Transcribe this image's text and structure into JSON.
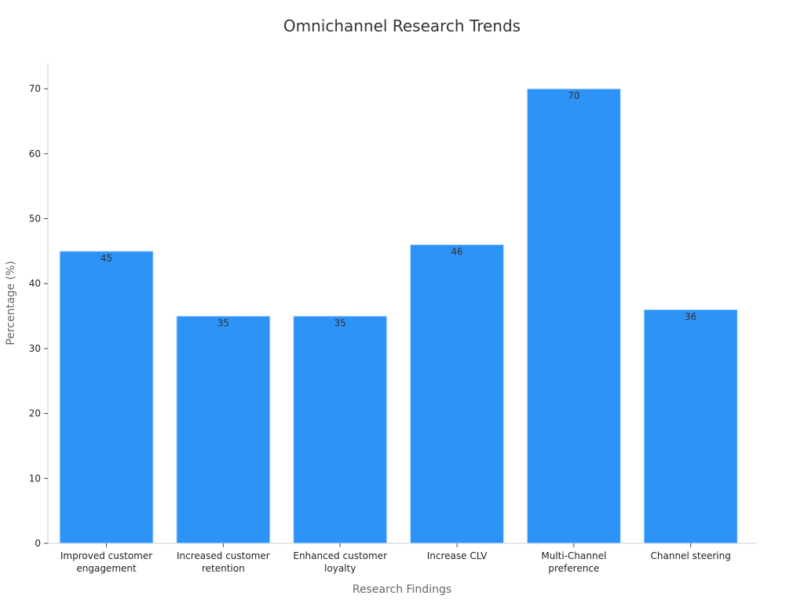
{
  "chart_data": {
    "type": "bar",
    "title": "Omnichannel Research Trends",
    "xlabel": "Research Findings",
    "ylabel": "Percentage (%)",
    "categories": [
      [
        "Improved customer",
        "engagement"
      ],
      [
        "Increased customer",
        "retention"
      ],
      [
        "Enhanced customer",
        "loyalty"
      ],
      [
        "Increase CLV"
      ],
      [
        "Multi-Channel",
        "preference"
      ],
      [
        "Channel steering"
      ]
    ],
    "values": [
      45,
      35,
      35,
      46,
      70,
      36
    ],
    "ylim": [
      0,
      74
    ],
    "yticks": [
      0,
      10,
      20,
      30,
      40,
      50,
      60,
      70
    ],
    "grid": false,
    "legend": "none",
    "bar_color": "#2E93F7",
    "bar_edge_color": "#D5E6F8"
  }
}
